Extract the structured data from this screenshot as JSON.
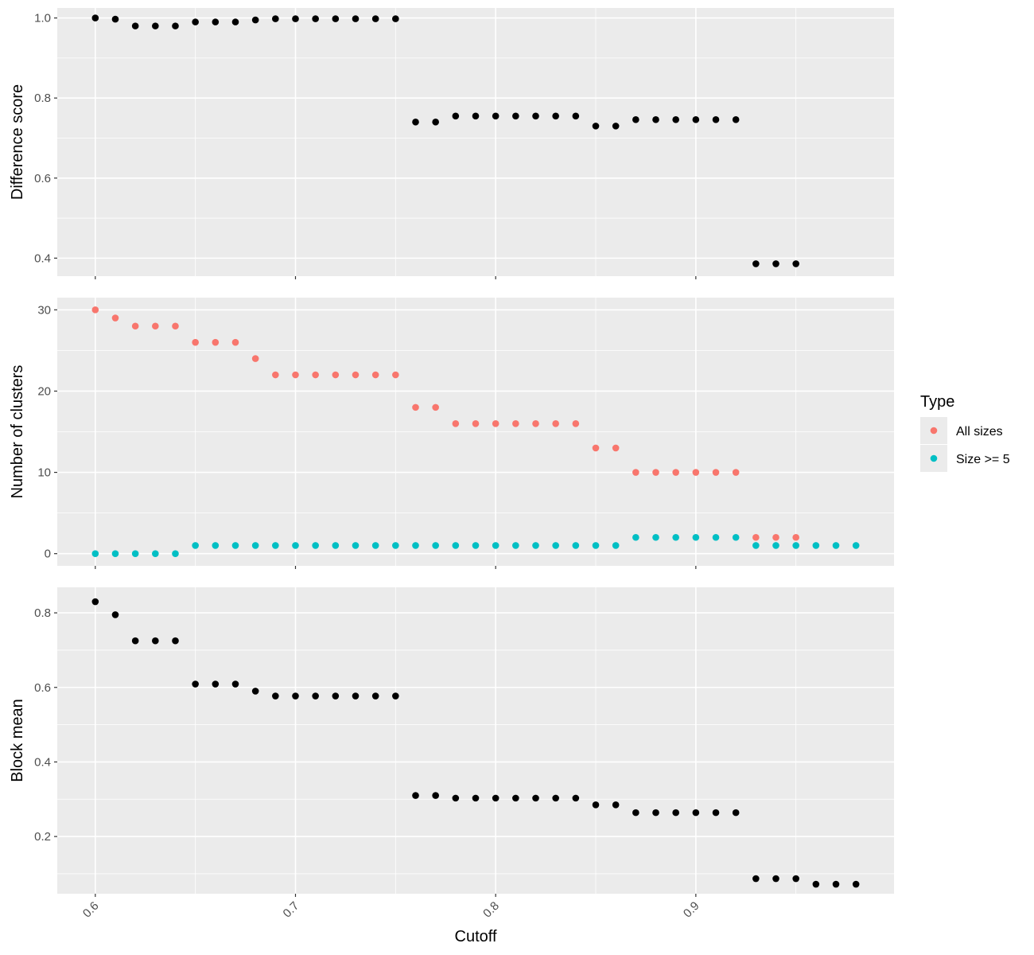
{
  "chart_data": {
    "type": "scatter",
    "x_axis": {
      "label": "Cutoff",
      "range": [
        0.581,
        0.999
      ],
      "ticks": [
        0.6,
        0.7,
        0.8,
        0.9
      ],
      "tick_labels": [
        "0.6",
        "0.7",
        "0.8",
        "0.9"
      ]
    },
    "panels": [
      {
        "ylabel": "Difference score",
        "ylim": [
          0.355,
          1.025
        ],
        "yticks": [
          0.4,
          0.6,
          0.8,
          1.0
        ],
        "ytick_labels": [
          "0.4",
          "0.6",
          "0.8",
          "1.0"
        ],
        "series": [
          {
            "color": "#000000",
            "x": [
              0.6,
              0.61,
              0.62,
              0.63,
              0.64,
              0.65,
              0.66,
              0.67,
              0.68,
              0.69,
              0.7,
              0.71,
              0.72,
              0.73,
              0.74,
              0.75,
              0.76,
              0.77,
              0.78,
              0.79,
              0.8,
              0.81,
              0.82,
              0.83,
              0.84,
              0.85,
              0.86,
              0.87,
              0.88,
              0.89,
              0.9,
              0.91,
              0.92,
              0.93,
              0.94,
              0.95
            ],
            "y": [
              1.0,
              0.997,
              0.98,
              0.98,
              0.98,
              0.99,
              0.99,
              0.99,
              0.995,
              0.998,
              0.998,
              0.998,
              0.998,
              0.998,
              0.998,
              0.998,
              0.74,
              0.74,
              0.755,
              0.755,
              0.755,
              0.755,
              0.755,
              0.755,
              0.755,
              0.73,
              0.73,
              0.746,
              0.746,
              0.746,
              0.746,
              0.746,
              0.746,
              0.386,
              0.386,
              0.386
            ]
          }
        ]
      },
      {
        "ylabel": "Number of clusters",
        "ylim": [
          -1.5,
          31.5
        ],
        "yticks": [
          0,
          10,
          20,
          30
        ],
        "ytick_labels": [
          "0",
          "10",
          "20",
          "30"
        ],
        "series": [
          {
            "name": "All sizes",
            "color": "#F8766D",
            "x": [
              0.6,
              0.61,
              0.62,
              0.63,
              0.64,
              0.65,
              0.66,
              0.67,
              0.68,
              0.69,
              0.7,
              0.71,
              0.72,
              0.73,
              0.74,
              0.75,
              0.76,
              0.77,
              0.78,
              0.79,
              0.8,
              0.81,
              0.82,
              0.83,
              0.84,
              0.85,
              0.86,
              0.87,
              0.88,
              0.89,
              0.9,
              0.91,
              0.92,
              0.93,
              0.94,
              0.95
            ],
            "y": [
              30,
              29,
              28,
              28,
              28,
              26,
              26,
              26,
              24,
              22,
              22,
              22,
              22,
              22,
              22,
              22,
              18,
              18,
              16,
              16,
              16,
              16,
              16,
              16,
              16,
              13,
              13,
              10,
              10,
              10,
              10,
              10,
              10,
              2,
              2,
              2
            ]
          },
          {
            "name": "Size >= 5",
            "color": "#00BFC4",
            "x": [
              0.6,
              0.61,
              0.62,
              0.63,
              0.64,
              0.65,
              0.66,
              0.67,
              0.68,
              0.69,
              0.7,
              0.71,
              0.72,
              0.73,
              0.74,
              0.75,
              0.76,
              0.77,
              0.78,
              0.79,
              0.8,
              0.81,
              0.82,
              0.83,
              0.84,
              0.85,
              0.86,
              0.87,
              0.88,
              0.89,
              0.9,
              0.91,
              0.92,
              0.93,
              0.94,
              0.95,
              0.96,
              0.97,
              0.98
            ],
            "y": [
              0,
              0,
              0,
              0,
              0,
              1,
              1,
              1,
              1,
              1,
              1,
              1,
              1,
              1,
              1,
              1,
              1,
              1,
              1,
              1,
              1,
              1,
              1,
              1,
              1,
              1,
              1,
              2,
              2,
              2,
              2,
              2,
              2,
              1,
              1,
              1,
              1,
              1,
              1
            ]
          }
        ]
      },
      {
        "ylabel": "Block mean",
        "ylim": [
          0.0465,
          0.8685
        ],
        "yticks": [
          0.2,
          0.4,
          0.6,
          0.8
        ],
        "ytick_labels": [
          "0.2",
          "0.4",
          "0.6",
          "0.8"
        ],
        "series": [
          {
            "color": "#000000",
            "x": [
              0.6,
              0.61,
              0.62,
              0.63,
              0.64,
              0.65,
              0.66,
              0.67,
              0.68,
              0.69,
              0.7,
              0.71,
              0.72,
              0.73,
              0.74,
              0.75,
              0.76,
              0.77,
              0.78,
              0.79,
              0.8,
              0.81,
              0.82,
              0.83,
              0.84,
              0.85,
              0.86,
              0.87,
              0.88,
              0.89,
              0.9,
              0.91,
              0.92,
              0.93,
              0.94,
              0.95,
              0.96,
              0.97,
              0.98
            ],
            "y": [
              0.83,
              0.795,
              0.725,
              0.725,
              0.725,
              0.609,
              0.609,
              0.609,
              0.59,
              0.577,
              0.577,
              0.577,
              0.577,
              0.577,
              0.577,
              0.577,
              0.31,
              0.31,
              0.303,
              0.303,
              0.303,
              0.303,
              0.303,
              0.303,
              0.303,
              0.285,
              0.285,
              0.264,
              0.264,
              0.264,
              0.264,
              0.264,
              0.264,
              0.087,
              0.087,
              0.087,
              0.072,
              0.072,
              0.072
            ]
          }
        ]
      }
    ],
    "legend": {
      "title": "Type",
      "placement": "right",
      "entries": [
        {
          "label": "All sizes",
          "color": "#F8766D"
        },
        {
          "label": "Size >= 5",
          "color": "#00BFC4"
        }
      ]
    },
    "grid": true,
    "panel_background": "#EBEBEB",
    "grid_color": "#FFFFFF"
  }
}
